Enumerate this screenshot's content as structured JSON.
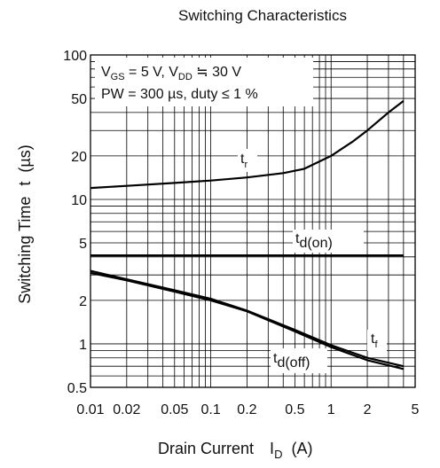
{
  "chart_data": {
    "type": "line",
    "title": "Switching Characteristics",
    "xlabel": {
      "main": "Drain Current",
      "sym": "I",
      "sub": "D",
      "unit": "(A)"
    },
    "ylabel": {
      "main": "Switching Time",
      "sym": "t",
      "unit": "(µs)"
    },
    "x_scale": "log",
    "y_scale": "log",
    "xlim": [
      0.01,
      5
    ],
    "ylim": [
      0.5,
      100
    ],
    "x_ticks": [
      {
        "v": 0.01,
        "label": "0.01"
      },
      {
        "v": 0.02,
        "label": "0.02"
      },
      {
        "v": 0.05,
        "label": "0.05"
      },
      {
        "v": 0.1,
        "label": "0.1"
      },
      {
        "v": 0.2,
        "label": "0.2"
      },
      {
        "v": 0.5,
        "label": "0.5"
      },
      {
        "v": 1,
        "label": "1"
      },
      {
        "v": 2,
        "label": "2"
      },
      {
        "v": 5,
        "label": "5"
      }
    ],
    "y_ticks": [
      {
        "v": 0.5,
        "label": "0.5"
      },
      {
        "v": 1,
        "label": "1"
      },
      {
        "v": 2,
        "label": "2"
      },
      {
        "v": 5,
        "label": "5"
      },
      {
        "v": 10,
        "label": "10"
      },
      {
        "v": 20,
        "label": "20"
      },
      {
        "v": 50,
        "label": "50"
      },
      {
        "v": 100,
        "label": "100"
      }
    ],
    "grid": true,
    "conditions": {
      "line1": {
        "v_gs_sym": "V",
        "v_gs_sub": "GS",
        "v_gs_val": " = 5 V, ",
        "v_dd_sym": "V",
        "v_dd_sub": "DD",
        "v_dd_val": " ≒ 30 V"
      },
      "line2": "PW = 300 µs, duty ≤ 1 %"
    },
    "series": [
      {
        "name": "t",
        "sub": "r",
        "x": [
          0.01,
          0.02,
          0.05,
          0.1,
          0.2,
          0.4,
          0.6,
          1.0,
          1.5,
          2.0,
          3.0,
          4.0
        ],
        "y": [
          12.0,
          12.4,
          13.0,
          13.5,
          14.2,
          15.2,
          16.3,
          20.0,
          25.0,
          30.0,
          40.0,
          48.0
        ]
      },
      {
        "name": "t",
        "sub": "d(on)",
        "x": [
          0.01,
          4.0
        ],
        "y": [
          4.1,
          4.1
        ]
      },
      {
        "name": "t",
        "sub": "f",
        "x": [
          0.01,
          0.02,
          0.05,
          0.1,
          0.2,
          0.5,
          1.0,
          2.0,
          4.0
        ],
        "y": [
          3.2,
          2.8,
          2.35,
          2.05,
          1.7,
          1.25,
          0.98,
          0.8,
          0.7
        ]
      },
      {
        "name": "t",
        "sub": "d(off)",
        "x": [
          0.01,
          0.02,
          0.05,
          0.1,
          0.2,
          0.5,
          1.0,
          2.0,
          4.0
        ],
        "y": [
          3.1,
          2.75,
          2.3,
          2.0,
          1.68,
          1.22,
          0.95,
          0.77,
          0.67
        ]
      }
    ]
  }
}
